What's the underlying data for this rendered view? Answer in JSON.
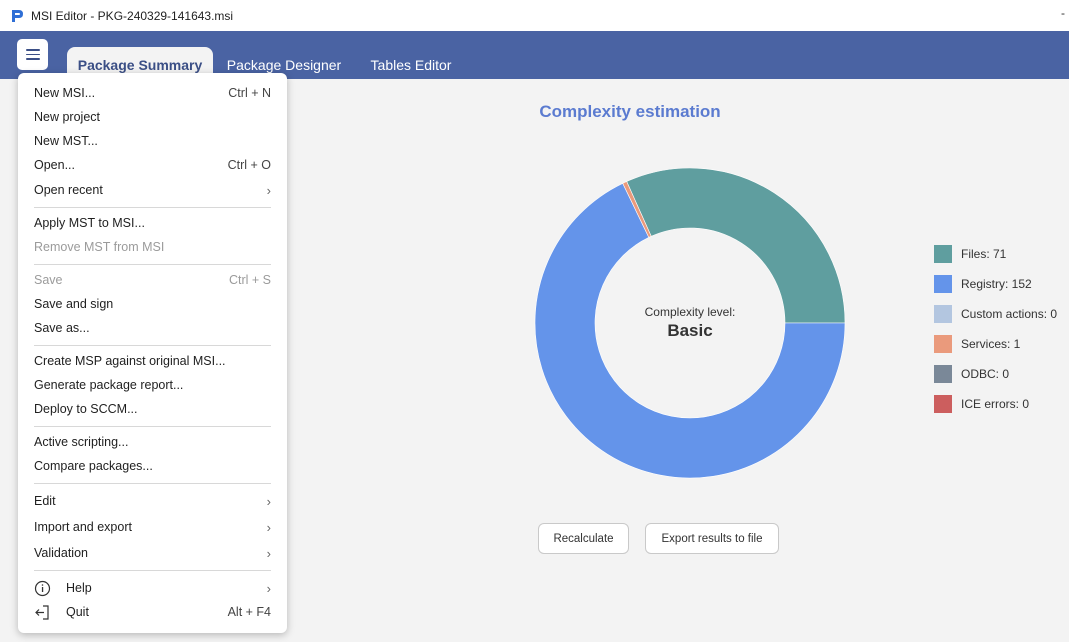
{
  "window": {
    "title": "MSI Editor - PKG-240329-141643.msi",
    "title_right": "-"
  },
  "tabs": [
    {
      "label": "Package Summary"
    },
    {
      "label": "Package Designer"
    },
    {
      "label": "Tables Editor"
    }
  ],
  "menu": {
    "new_msi": {
      "label": "New MSI...",
      "shortcut": "Ctrl + N"
    },
    "new_project": {
      "label": "New project"
    },
    "new_mst": {
      "label": "New MST..."
    },
    "open": {
      "label": "Open...",
      "shortcut": "Ctrl + O"
    },
    "open_recent": {
      "label": "Open recent"
    },
    "apply_mst": {
      "label": "Apply MST to MSI..."
    },
    "remove_mst": {
      "label": "Remove MST from MSI"
    },
    "save": {
      "label": "Save",
      "shortcut": "Ctrl + S"
    },
    "save_sign": {
      "label": "Save and sign"
    },
    "save_as": {
      "label": "Save as..."
    },
    "create_msp": {
      "label": "Create MSP against original MSI..."
    },
    "gen_report": {
      "label": "Generate package report..."
    },
    "deploy": {
      "label": "Deploy to SCCM..."
    },
    "scripting": {
      "label": "Active scripting..."
    },
    "compare": {
      "label": "Compare packages..."
    },
    "edit": {
      "label": "Edit"
    },
    "import_export": {
      "label": "Import and export"
    },
    "validation": {
      "label": "Validation"
    },
    "help": {
      "label": "Help"
    },
    "quit": {
      "label": "Quit",
      "shortcut": "Alt + F4"
    }
  },
  "content": {
    "title": "Complexity estimation",
    "center_label": "Complexity level:",
    "center_value": "Basic",
    "recalculate": "Recalculate",
    "export": "Export results to file"
  },
  "chart_data": {
    "type": "pie",
    "categories": [
      "Files",
      "Registry",
      "Custom actions",
      "Services",
      "ODBC",
      "ICE errors"
    ],
    "values": [
      71,
      152,
      0,
      1,
      0,
      0
    ],
    "legend_labels": [
      "Files: 71",
      "Registry: 152",
      "Custom actions: 0",
      "Services: 1",
      "ODBC: 0",
      "ICE errors: 0"
    ],
    "colors": [
      "#5f9e9f",
      "#6494ea",
      "#b3c6e0",
      "#ea9a7c",
      "#7a8898",
      "#cc5e5e"
    ],
    "legend_position": "right"
  }
}
